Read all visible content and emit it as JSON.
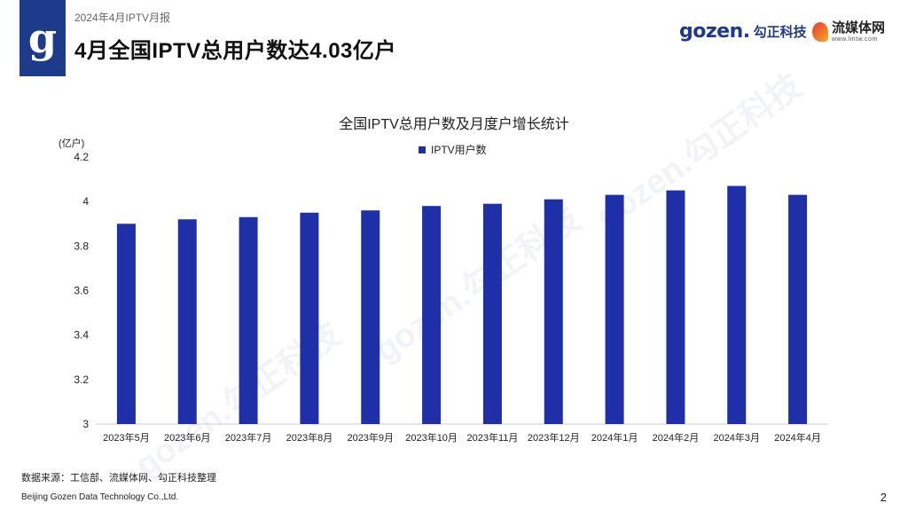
{
  "header": {
    "logo_glyph": "g",
    "report_name": "2024年4月IPTV月报",
    "page_title": "4月全国IPTV总用户数达4.03亿户"
  },
  "brands": {
    "gozen_mark": "gozen.",
    "gozen_cn": "勾正科技",
    "lmtw_cn": "流媒体网",
    "lmtw_url": "www.lmtw.com"
  },
  "watermark_text": "gozen.勾正科技",
  "chart_data": {
    "type": "bar",
    "title": "全国IPTV总用户数及月度户增长统计",
    "ylabel": "(亿户)",
    "xlabel": "",
    "ylim": [
      3,
      4.2
    ],
    "yticks": [
      "3",
      "3.2",
      "3.4",
      "3.6",
      "3.8",
      "4",
      "4.2"
    ],
    "legend_position": "top-center",
    "color": "#1f2fa8",
    "categories": [
      "2023年5月",
      "2023年6月",
      "2023年7月",
      "2023年8月",
      "2023年9月",
      "2023年10月",
      "2023年11月",
      "2023年12月",
      "2024年1月",
      "2024年2月",
      "2024年3月",
      "2024年4月"
    ],
    "series": [
      {
        "name": "IPTV用户数",
        "values": [
          3.9,
          3.92,
          3.93,
          3.95,
          3.96,
          3.98,
          3.99,
          4.01,
          4.03,
          4.05,
          4.07,
          4.03
        ]
      }
    ]
  },
  "footer": {
    "source": "数据来源：工信部、流媒体网、勾正科技整理",
    "company": "Beijing Gozen Data Technology Co.,Ltd.",
    "page_number": "2"
  }
}
